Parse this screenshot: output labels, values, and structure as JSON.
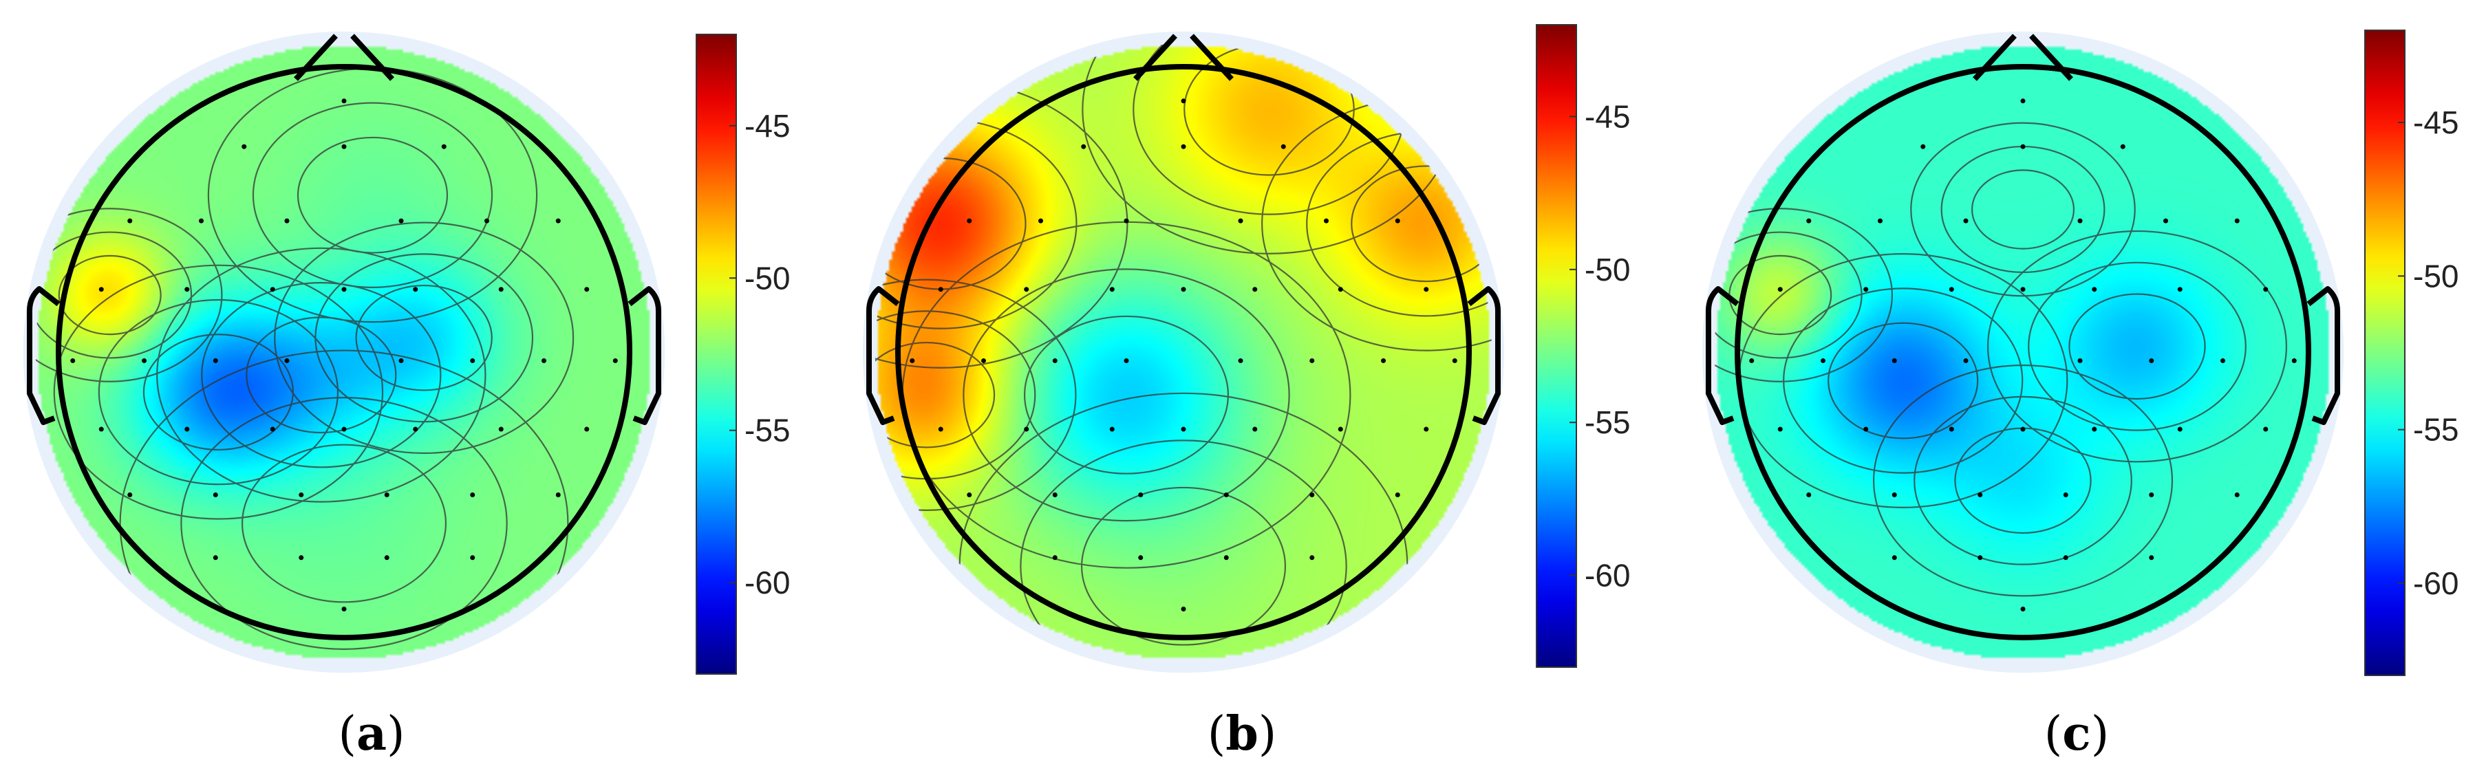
{
  "chart_data": [
    {
      "type": "heatmap",
      "panel_label": {
        "open": "(",
        "letter": "a",
        "close": ")"
      },
      "colorbar": {
        "ticks": [
          "-45",
          "-50",
          "-55",
          "-60"
        ],
        "tick_values": [
          -45,
          -50,
          -55,
          -60
        ],
        "range": [
          -63,
          -42
        ],
        "colormap": "jet"
      },
      "blobs": [
        {
          "x": -0.44,
          "y": 0.14,
          "value": -57.5,
          "spread": 0.22
        },
        {
          "x": 0.28,
          "y": -0.05,
          "value": -55.5,
          "spread": 0.2
        },
        {
          "x": -0.08,
          "y": 0.08,
          "value": -55.0,
          "spread": 0.22
        },
        {
          "x": 0.1,
          "y": -0.55,
          "value": -53.0,
          "spread": 0.22
        },
        {
          "x": -0.82,
          "y": -0.2,
          "value": -49.0,
          "spread": 0.15
        },
        {
          "x": 0.0,
          "y": 0.6,
          "value": -53.0,
          "spread": 0.3
        }
      ],
      "base_value": -52.5
    },
    {
      "type": "heatmap",
      "panel_label": {
        "open": "(",
        "letter": "b",
        "close": ")"
      },
      "colorbar": {
        "ticks": [
          "-45",
          "-50",
          "-55",
          "-60"
        ],
        "tick_values": [
          -45,
          -50,
          -55,
          -60
        ],
        "range": [
          -63,
          -42
        ],
        "colormap": "jet"
      },
      "blobs": [
        {
          "x": -0.2,
          "y": 0.15,
          "value": -56.0,
          "spread": 0.3
        },
        {
          "x": -0.85,
          "y": -0.45,
          "value": -45.5,
          "spread": 0.25
        },
        {
          "x": -0.9,
          "y": 0.15,
          "value": -47.5,
          "spread": 0.2
        },
        {
          "x": 0.85,
          "y": -0.45,
          "value": -48.0,
          "spread": 0.22
        },
        {
          "x": 0.3,
          "y": -0.85,
          "value": -48.5,
          "spread": 0.25
        },
        {
          "x": 0.0,
          "y": 0.75,
          "value": -52.0,
          "spread": 0.3
        }
      ],
      "base_value": -51.5
    },
    {
      "type": "heatmap",
      "panel_label": {
        "open": "(",
        "letter": "c",
        "close": ")"
      },
      "colorbar": {
        "ticks": [
          "-45",
          "-50",
          "-55",
          "-60"
        ],
        "tick_values": [
          -45,
          -50,
          -55,
          -60
        ],
        "range": [
          -63,
          -42
        ],
        "colormap": "jet"
      },
      "blobs": [
        {
          "x": -0.42,
          "y": 0.1,
          "value": -58.0,
          "spread": 0.22
        },
        {
          "x": 0.4,
          "y": -0.02,
          "value": -56.5,
          "spread": 0.2
        },
        {
          "x": 0.0,
          "y": 0.45,
          "value": -55.5,
          "spread": 0.2
        },
        {
          "x": -0.85,
          "y": -0.2,
          "value": -51.0,
          "spread": 0.15
        },
        {
          "x": 0.0,
          "y": -0.5,
          "value": -54.0,
          "spread": 0.15
        }
      ],
      "base_value": -54.0
    }
  ]
}
